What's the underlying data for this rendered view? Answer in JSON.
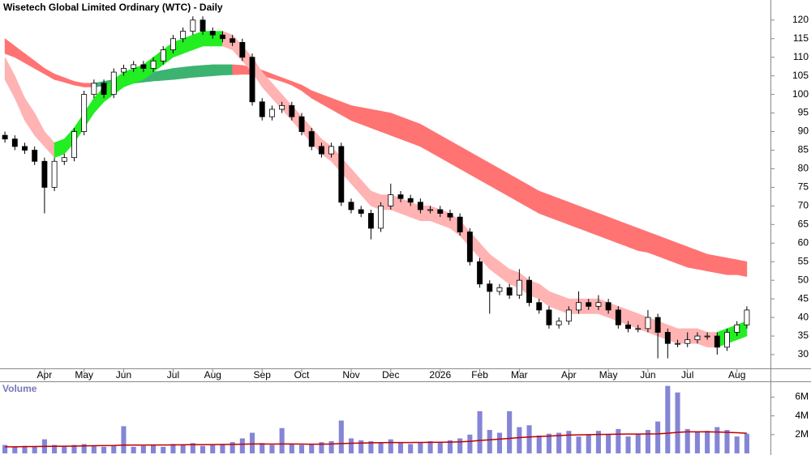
{
  "chart_data": [
    {
      "type": "candlestick",
      "title": "Wisetech Global Limited Ordinary (WTC) - Daily",
      "categories": [
        null,
        null,
        null,
        null,
        "Apr",
        null,
        null,
        null,
        "May",
        null,
        null,
        null,
        "Jun",
        null,
        null,
        null,
        null,
        "Jul",
        null,
        null,
        null,
        "Aug",
        null,
        null,
        null,
        null,
        "Sep",
        null,
        null,
        null,
        "Oct",
        null,
        null,
        null,
        null,
        "Nov",
        null,
        null,
        null,
        "Dec",
        null,
        null,
        null,
        null,
        "2026",
        null,
        null,
        null,
        "Feb",
        null,
        null,
        null,
        "Mar",
        null,
        null,
        null,
        null,
        "Apr",
        null,
        null,
        null,
        "May",
        null,
        null,
        null,
        "Jun",
        null,
        null,
        null,
        "Jul",
        null,
        null,
        null,
        null,
        "Aug",
        null
      ],
      "open": [
        89,
        88,
        86,
        85,
        82,
        75,
        82,
        83,
        90,
        100,
        103,
        100,
        106,
        107,
        108,
        107,
        109,
        112,
        115,
        117,
        120,
        117,
        116,
        115,
        114,
        110,
        98,
        94,
        96,
        97,
        94,
        90,
        86,
        84,
        86,
        71,
        69,
        68,
        64,
        70,
        73,
        72,
        71,
        69,
        69,
        68,
        67,
        63,
        55,
        49,
        47,
        48,
        46,
        50,
        44,
        42,
        38,
        39,
        42,
        44,
        43,
        44,
        42,
        38,
        37,
        37,
        40,
        36,
        33,
        33,
        34,
        35,
        35,
        32,
        36,
        38
      ],
      "high": [
        90,
        89,
        87,
        86,
        83,
        83,
        84,
        91,
        101,
        104,
        104,
        107,
        108,
        109,
        109,
        110,
        113,
        116,
        118,
        121,
        121,
        118,
        117,
        116,
        115,
        111,
        99,
        97,
        98,
        98,
        95,
        91,
        87,
        87,
        87,
        72,
        70,
        69,
        71,
        76,
        74,
        73,
        72,
        70,
        70,
        69,
        68,
        64,
        56,
        50,
        49,
        49,
        53,
        51,
        45,
        43,
        40,
        43,
        47,
        45,
        46,
        45,
        43,
        39,
        38,
        42,
        41,
        37,
        34,
        36,
        36,
        36,
        36,
        37,
        39,
        43
      ],
      "low": [
        87,
        85,
        84,
        81,
        68,
        74,
        81,
        82,
        89,
        99,
        99,
        99,
        105,
        106,
        106,
        106,
        108,
        111,
        114,
        116,
        116,
        115,
        114,
        113,
        109,
        97,
        93,
        93,
        95,
        93,
        89,
        85,
        83,
        83,
        70,
        68,
        67,
        61,
        63,
        69,
        71,
        70,
        68,
        68,
        67,
        66,
        62,
        54,
        48,
        41,
        46,
        45,
        45,
        43,
        41,
        37,
        37,
        38,
        41,
        42,
        42,
        41,
        37,
        36,
        36,
        36,
        29,
        29,
        32,
        32,
        33,
        34,
        30,
        31,
        35,
        37
      ],
      "close": [
        88,
        86,
        85,
        82,
        75,
        82,
        83,
        90,
        100,
        103,
        100,
        106,
        107,
        108,
        107,
        109,
        112,
        115,
        117,
        120,
        117,
        116,
        115,
        114,
        110,
        98,
        94,
        96,
        97,
        94,
        90,
        86,
        84,
        86,
        71,
        69,
        68,
        64,
        70,
        73,
        72,
        71,
        69,
        69,
        68,
        67,
        63,
        55,
        49,
        47,
        48,
        46,
        50,
        44,
        42,
        38,
        39,
        42,
        44,
        43,
        44,
        42,
        38,
        37,
        37,
        40,
        36,
        33,
        33,
        34,
        35,
        35,
        32,
        36,
        38,
        42
      ],
      "up_color": "#ffffff",
      "down_color": "#000000",
      "bands": [
        {
          "upper": [
            115,
            113,
            111,
            109,
            107,
            105.5,
            104.5,
            103.5,
            103,
            103,
            103.5,
            104,
            104.5,
            105,
            105.5,
            106,
            106.5,
            107,
            107.3,
            107.6,
            107.8,
            108,
            108,
            108,
            107.8,
            107.3,
            106.5,
            105.5,
            104.5,
            103.5,
            102.5,
            101,
            100,
            99,
            98,
            97,
            96.5,
            96,
            95.5,
            95,
            94,
            93,
            92,
            90.5,
            89,
            87.5,
            86,
            84.5,
            83,
            81.5,
            80,
            78.5,
            77,
            75.5,
            74,
            73,
            72,
            71,
            70,
            69,
            68,
            67,
            66,
            65,
            64,
            63,
            62,
            61,
            60,
            59,
            58,
            57,
            56.5,
            56,
            55.5,
            55
          ],
          "lower": [
            111,
            110,
            108.5,
            107,
            105.5,
            104,
            103.3,
            102.5,
            102,
            102,
            102.3,
            102.5,
            102.8,
            103,
            103.3,
            103.6,
            103.8,
            104,
            104.3,
            104.6,
            104.8,
            105,
            105.2,
            105.3,
            105.4,
            105.4,
            105,
            104.3,
            103.5,
            102.5,
            101,
            99,
            97.5,
            96,
            94.5,
            93,
            92,
            91,
            90,
            89,
            88,
            87,
            86,
            84.5,
            83,
            81.5,
            80,
            78.5,
            77,
            75.5,
            74,
            72.5,
            71,
            69.5,
            68,
            67,
            66,
            65,
            64,
            63,
            62,
            61,
            60,
            59,
            58,
            57.5,
            56.5,
            55.5,
            54.5,
            53.5,
            53,
            52.5,
            52,
            51.5,
            51.5,
            51
          ],
          "up_color": "#3cb371",
          "down_color": "#ff7373"
        },
        {
          "upper": [
            110,
            105,
            99,
            95,
            90,
            87,
            88,
            91,
            95,
            99,
            102,
            104,
            106,
            107,
            108,
            110,
            112,
            114,
            115,
            116,
            117,
            117,
            117,
            116,
            113,
            110,
            106,
            103,
            100,
            97,
            94,
            91,
            88,
            86,
            83,
            80,
            77,
            74,
            73,
            73,
            72,
            71,
            70,
            70,
            69,
            68,
            66,
            63,
            60,
            57,
            55,
            53,
            52,
            50,
            49,
            47,
            46,
            45,
            45,
            45,
            45,
            44,
            43,
            42,
            41,
            40,
            39,
            38,
            37,
            37,
            37,
            36,
            36,
            37,
            38,
            39
          ],
          "lower": [
            104,
            99,
            93,
            89,
            86,
            83,
            84,
            87,
            91,
            95,
            98,
            100,
            102,
            103,
            104,
            106,
            108,
            110,
            111,
            112,
            113,
            113,
            113,
            112,
            109,
            106,
            102,
            99,
            96,
            93,
            90,
            87,
            84,
            82,
            79,
            76,
            73,
            70,
            69,
            69,
            68,
            67,
            66,
            66,
            65,
            64,
            62,
            59,
            56,
            53,
            51,
            49,
            48,
            46,
            45,
            43,
            42,
            41,
            41,
            41,
            41,
            40,
            39,
            38,
            37,
            36,
            35,
            34,
            33,
            33,
            33,
            32,
            32,
            33,
            34,
            35
          ],
          "up_color": "#22ee22",
          "down_color": "#ffb3b3"
        }
      ],
      "ylim": [
        26.3,
        125.4
      ],
      "yticks": [
        30,
        35,
        40,
        45,
        50,
        55,
        60,
        65,
        70,
        75,
        80,
        85,
        90,
        95,
        100,
        105,
        110,
        115,
        120
      ],
      "grid": false
    },
    {
      "type": "bar",
      "title": "Volume",
      "values": [
        900000,
        700000,
        800000,
        700000,
        1500000,
        900000,
        800000,
        900000,
        1000000,
        800000,
        700000,
        800000,
        2900000,
        700000,
        800000,
        900000,
        700000,
        1000000,
        900000,
        1100000,
        800000,
        900000,
        1000000,
        1200000,
        1600000,
        2200000,
        1100000,
        900000,
        2700000,
        1000000,
        900000,
        1000000,
        1200000,
        1300000,
        3500000,
        1600000,
        1400000,
        1300000,
        1200000,
        1500000,
        1100000,
        1000000,
        1200000,
        1300000,
        1200000,
        1400000,
        1600000,
        2000000,
        4500000,
        2500000,
        2200000,
        4500000,
        2800000,
        3000000,
        1900000,
        2100000,
        2200000,
        2400000,
        1800000,
        2000000,
        2400000,
        2000000,
        2600000,
        1800000,
        2100000,
        2500000,
        3400000,
        7200000,
        6500000,
        2600000,
        2300000,
        2400000,
        2800000,
        2500000,
        1800000,
        2100000
      ],
      "color": "#8585d6",
      "ma": [
        700000,
        700000,
        720000,
        730000,
        750000,
        760000,
        770000,
        780000,
        800000,
        820000,
        830000,
        840000,
        880000,
        880000,
        890000,
        900000,
        900000,
        910000,
        920000,
        930000,
        930000,
        940000,
        950000,
        960000,
        980000,
        1000000,
        1000000,
        990000,
        1000000,
        1000000,
        990000,
        980000,
        980000,
        1000000,
        1050000,
        1080000,
        1100000,
        1120000,
        1140000,
        1160000,
        1160000,
        1160000,
        1170000,
        1180000,
        1190000,
        1200000,
        1230000,
        1280000,
        1380000,
        1450000,
        1520000,
        1600000,
        1680000,
        1750000,
        1800000,
        1850000,
        1900000,
        1950000,
        1980000,
        2000000,
        2020000,
        2030000,
        2050000,
        2060000,
        2060000,
        2070000,
        2080000,
        2150000,
        2250000,
        2300000,
        2300000,
        2300000,
        2280000,
        2250000,
        2200000,
        2150000
      ],
      "ma_color": "#c00000",
      "ylim": [
        0,
        7600000
      ],
      "yticks": [
        {
          "value": 2000000,
          "label": "2M"
        },
        {
          "value": 4000000,
          "label": "4M"
        },
        {
          "value": 6000000,
          "label": "6M"
        }
      ]
    }
  ]
}
